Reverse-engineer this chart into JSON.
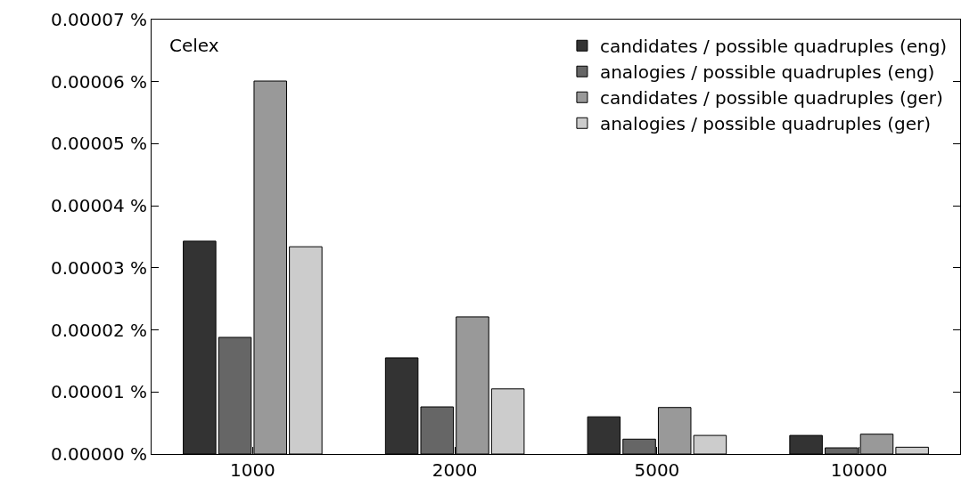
{
  "chart_data": {
    "type": "bar",
    "categories": [
      "1000",
      "2000",
      "5000",
      "10000"
    ],
    "series": [
      {
        "name": "candidates / possible quadruples (eng)",
        "color": "#333333",
        "values": [
          3.43e-05,
          1.55e-05,
          6e-06,
          3e-06
        ]
      },
      {
        "name": "analogies / possible quadruples (eng)",
        "color": "#666666",
        "values": [
          1.88e-05,
          7.6e-06,
          2.4e-06,
          1e-06
        ]
      },
      {
        "name": "candidates / possible quadruples (ger)",
        "color": "#999999",
        "values": [
          6.01e-05,
          2.21e-05,
          7.5e-06,
          3.2e-06
        ]
      },
      {
        "name": "analogies / possible quadruples (ger)",
        "color": "#cccccc",
        "values": [
          3.34e-05,
          1.05e-05,
          3e-06,
          1.1e-06
        ]
      }
    ],
    "ylim": [
      0,
      7e-05
    ],
    "yticks": [
      {
        "value": 0,
        "label": "0.00000 %"
      },
      {
        "value": 1e-05,
        "label": "0.00001 %"
      },
      {
        "value": 2e-05,
        "label": "0.00002 %"
      },
      {
        "value": 3e-05,
        "label": "0.00003 %"
      },
      {
        "value": 4e-05,
        "label": "0.00004 %"
      },
      {
        "value": 5e-05,
        "label": "0.00005 %"
      },
      {
        "value": 6e-05,
        "label": "0.00006 %"
      },
      {
        "value": 7e-05,
        "label": "0.00007 %"
      }
    ],
    "annotations": [
      "Celex"
    ],
    "legend": "top right",
    "grid": false
  }
}
